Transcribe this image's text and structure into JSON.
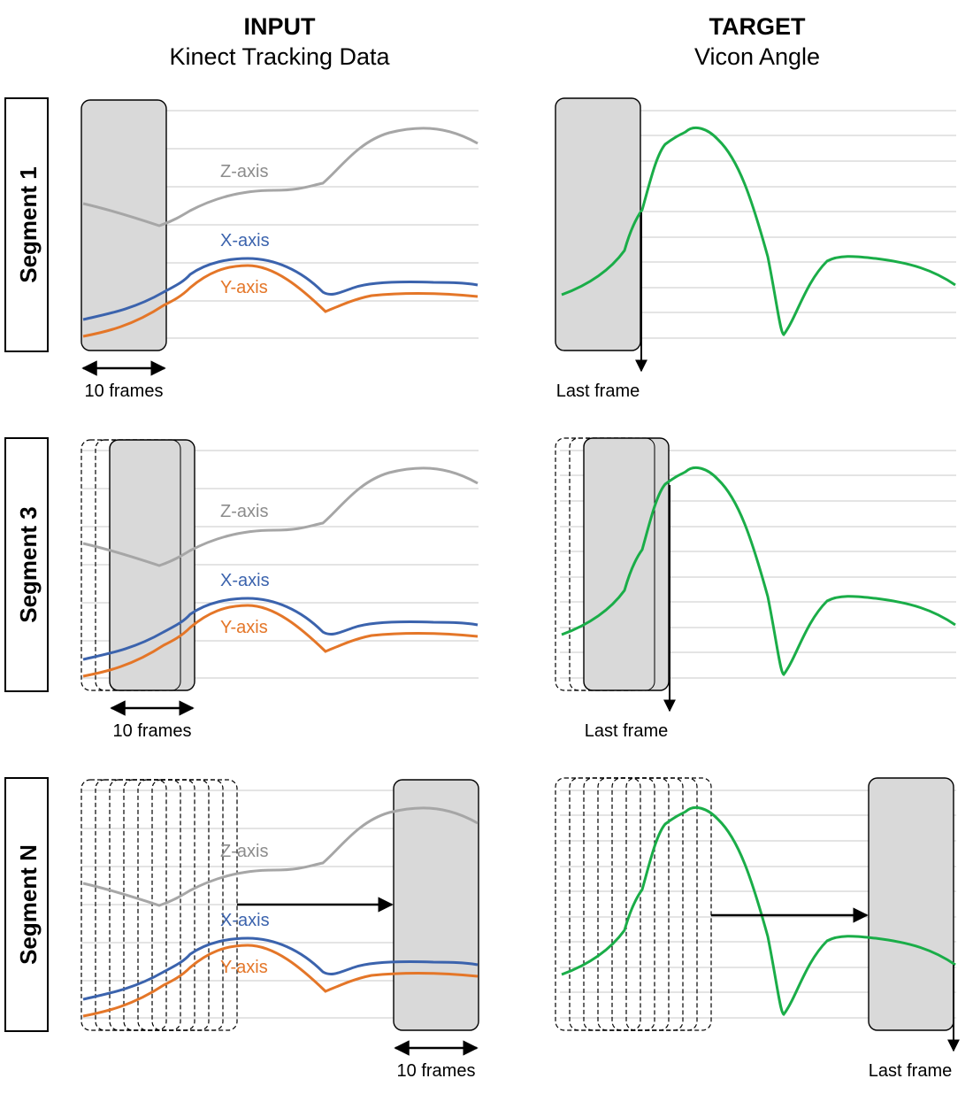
{
  "headers": {
    "input": {
      "title": "INPUT",
      "subtitle": "Kinect Tracking Data"
    },
    "target": {
      "title": "TARGET",
      "subtitle": "Vicon Angle"
    }
  },
  "segments": [
    {
      "label": "Segment 1"
    },
    {
      "label": "Segment 3"
    },
    {
      "label": "Segment N"
    }
  ],
  "axis_labels": {
    "z": "Z-axis",
    "x": "X-axis",
    "y": "Y-axis"
  },
  "window_label": "10 frames",
  "last_frame_label": "Last frame",
  "colors": {
    "z_axis": "#a6a6a6",
    "x_axis": "#3b63ad",
    "y_axis": "#e47628",
    "vicon": "#1aad48",
    "window_fill": "#d9d9d9",
    "grid": "#d4d4d4"
  }
}
